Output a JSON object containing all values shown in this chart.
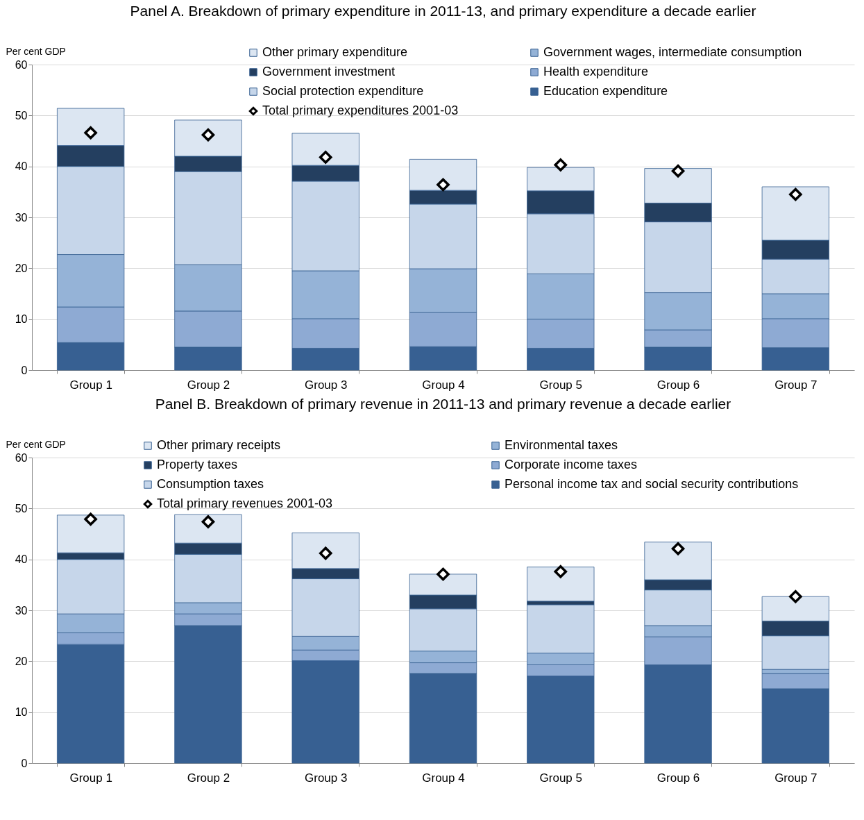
{
  "chart_data": [
    {
      "type": "bar",
      "title": "Panel A. Breakdown of primary expenditure in 2011-13, and primary expenditure a decade earlier",
      "ylabel": "Per cent GDP",
      "categories": [
        "Group 1",
        "Group 2",
        "Group 3",
        "Group 4",
        "Group 5",
        "Group 6",
        "Group 7"
      ],
      "stacked": true,
      "ylim": [
        0,
        60
      ],
      "yticks": [
        0,
        10,
        20,
        30,
        40,
        50,
        60
      ],
      "grid": "y",
      "legend": "top",
      "series": [
        {
          "name": "Education expenditure",
          "color": "#376092",
          "values": [
            5.4,
            4.5,
            4.3,
            4.6,
            4.3,
            4.5,
            4.4
          ]
        },
        {
          "name": "Health expenditure",
          "color": "#8eaad3",
          "values": [
            7.0,
            7.1,
            5.8,
            6.7,
            5.7,
            3.4,
            5.7
          ]
        },
        {
          "name": "Government wages, intermediate consumption",
          "color": "#95b3d7",
          "values": [
            10.3,
            9.1,
            9.4,
            8.6,
            8.9,
            7.3,
            4.9
          ]
        },
        {
          "name": "Social protection expenditure",
          "color": "#c6d6ea",
          "values": [
            17.3,
            18.3,
            17.6,
            12.7,
            11.8,
            13.9,
            6.8
          ]
        },
        {
          "name": "Government investment",
          "color": "#243f60",
          "values": [
            4.1,
            3.0,
            3.1,
            2.7,
            4.5,
            3.7,
            3.7
          ]
        },
        {
          "name": "Other primary expenditure",
          "color": "#dce6f2",
          "values": [
            7.3,
            7.1,
            6.3,
            6.1,
            4.6,
            6.8,
            10.5
          ]
        },
        {
          "name": "Total primary expenditures 2001-03",
          "type": "scatter",
          "marker": "diamond",
          "color": "#000000",
          "values": [
            46.6,
            46.2,
            41.8,
            36.4,
            40.3,
            39.1,
            34.5
          ]
        }
      ]
    },
    {
      "type": "bar",
      "title": "Panel B. Breakdown of primary revenue in 2011-13 and primary revenue a decade earlier",
      "ylabel": "Per cent GDP",
      "categories": [
        "Group 1",
        "Group 2",
        "Group 3",
        "Group 4",
        "Group 5",
        "Group 6",
        "Group 7"
      ],
      "stacked": true,
      "ylim": [
        0,
        60
      ],
      "yticks": [
        0,
        10,
        20,
        30,
        40,
        50,
        60
      ],
      "grid": "y",
      "legend": "top",
      "series": [
        {
          "name": "Personal income tax and social security contributions",
          "color": "#376092",
          "values": [
            23.3,
            27.0,
            20.1,
            17.6,
            17.1,
            19.3,
            14.6
          ]
        },
        {
          "name": "Corporate income taxes",
          "color": "#8eaad3",
          "values": [
            2.3,
            2.3,
            2.1,
            2.1,
            2.2,
            5.5,
            3.0
          ]
        },
        {
          "name": "Environmental taxes",
          "color": "#95b3d7",
          "values": [
            3.7,
            2.2,
            2.7,
            2.3,
            2.3,
            2.2,
            0.8
          ]
        },
        {
          "name": "Consumption taxes",
          "color": "#c6d6ea",
          "values": [
            10.7,
            9.5,
            11.3,
            8.3,
            9.5,
            7.0,
            6.6
          ]
        },
        {
          "name": "Property taxes",
          "color": "#243f60",
          "values": [
            1.3,
            2.2,
            2.0,
            2.7,
            0.7,
            2.0,
            2.9
          ]
        },
        {
          "name": "Other primary receipts",
          "color": "#dce6f2",
          "values": [
            7.4,
            5.6,
            7.0,
            4.1,
            6.7,
            7.4,
            4.8
          ]
        },
        {
          "name": "Total primary revenues 2001-03",
          "type": "scatter",
          "marker": "diamond",
          "color": "#000000",
          "values": [
            47.9,
            47.4,
            41.2,
            37.1,
            37.6,
            42.1,
            32.7
          ]
        }
      ]
    }
  ]
}
